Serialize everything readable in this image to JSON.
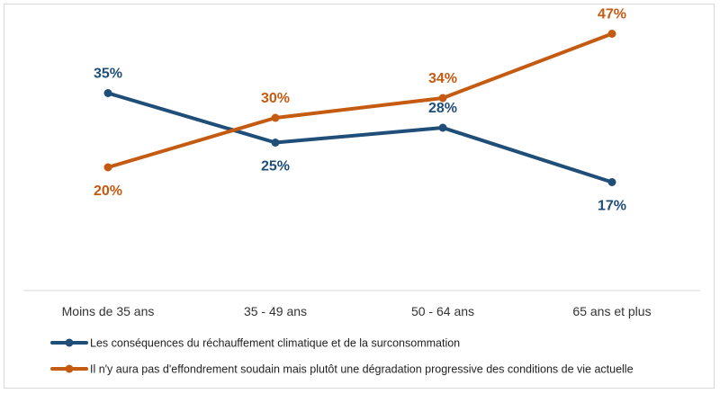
{
  "chart_data": {
    "type": "line",
    "categories": [
      "Moins de 35 ans",
      "35 - 49 ans",
      "50 - 64 ans",
      "65 ans et plus"
    ],
    "series": [
      {
        "name": "Les conséquences du réchauffement climatique et de la surconsommation",
        "values": [
          35,
          25,
          28,
          17
        ],
        "labels": [
          "35%",
          "25%",
          "28%",
          "17%"
        ],
        "color": "#1f4e79"
      },
      {
        "name": "Il n'y aura pas d'effondrement soudain mais plutôt une dégradation progressive des conditions de vie actuelle",
        "values": [
          20,
          30,
          34,
          47
        ],
        "labels": [
          "20%",
          "30%",
          "34%",
          "47%"
        ],
        "color": "#c55a11"
      }
    ],
    "title": "",
    "xlabel": "",
    "ylabel": "",
    "grid": false,
    "legend": "bottom-left"
  }
}
